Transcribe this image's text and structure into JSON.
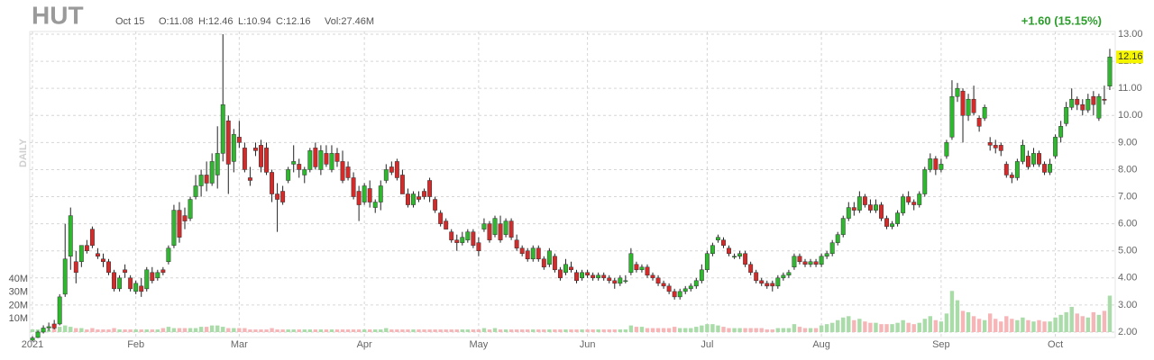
{
  "chart_data": {
    "type": "candlestick",
    "title": "HUT",
    "header": [
      "Oct 15",
      "O:11.08",
      "H:12.46",
      "L:10.94",
      "C:12.16",
      "Vol:27.46M"
    ],
    "change": "+1.60 (15.15%)",
    "period": "DAILY",
    "last_label": "12.16",
    "up_color": "#2db82d",
    "down_color": "#d42a2a",
    "volume_up_color": "#a9dca9",
    "volume_down_color": "#f6b6b8",
    "grid": true,
    "xlim": [
      -0.5,
      199
    ],
    "ylim": [
      1.8,
      13.1
    ],
    "vlim": [
      0,
      40
    ],
    "xticks": [
      {
        "value": 0,
        "label": "2021"
      },
      {
        "value": 19,
        "label": "Feb"
      },
      {
        "value": 38,
        "label": "Mar"
      },
      {
        "value": 61,
        "label": "Apr"
      },
      {
        "value": 82,
        "label": "May"
      },
      {
        "value": 102,
        "label": "Jun"
      },
      {
        "value": 124,
        "label": "Jul"
      },
      {
        "value": 145,
        "label": "Aug"
      },
      {
        "value": 167,
        "label": "Sep"
      },
      {
        "value": 188,
        "label": "Oct"
      }
    ],
    "yticks": [
      {
        "value": 2,
        "label": "2.00"
      },
      {
        "value": 3,
        "label": "3.00"
      },
      {
        "value": 4,
        "label": "4.00"
      },
      {
        "value": 5,
        "label": "5.00"
      },
      {
        "value": 6,
        "label": "6.00"
      },
      {
        "value": 7,
        "label": "7.00"
      },
      {
        "value": 8,
        "label": "8.00"
      },
      {
        "value": 9,
        "label": "9.00"
      },
      {
        "value": 10,
        "label": "10.00"
      },
      {
        "value": 11,
        "label": "11.00"
      },
      {
        "value": 12,
        "label": "12.00"
      },
      {
        "value": 13,
        "label": "13.00"
      }
    ],
    "vticks": [
      {
        "value": 10,
        "label": "10M"
      },
      {
        "value": 20,
        "label": "20M"
      },
      {
        "value": 30,
        "label": "30M"
      },
      {
        "value": 40,
        "label": "40M"
      }
    ],
    "ohlc": [
      [
        1.7,
        1.85,
        1.65,
        1.78
      ],
      [
        1.8,
        2.05,
        1.78,
        2.0
      ],
      [
        2.0,
        2.25,
        1.95,
        2.15
      ],
      [
        2.15,
        2.35,
        2.05,
        2.2
      ],
      [
        2.3,
        2.45,
        2.1,
        2.15
      ],
      [
        2.3,
        3.4,
        2.25,
        3.3
      ],
      [
        3.4,
        6.0,
        3.3,
        4.7
      ],
      [
        4.8,
        6.6,
        4.3,
        6.3
      ],
      [
        4.6,
        5.0,
        3.8,
        4.2
      ],
      [
        4.6,
        5.2,
        4.4,
        5.2
      ],
      [
        5.2,
        5.4,
        4.9,
        5.0
      ],
      [
        5.8,
        5.9,
        5.1,
        5.2
      ],
      [
        4.9,
        5.1,
        4.7,
        4.8
      ],
      [
        4.7,
        4.9,
        4.4,
        4.6
      ],
      [
        4.6,
        4.7,
        4.1,
        4.2
      ],
      [
        4.2,
        4.3,
        3.5,
        3.6
      ],
      [
        3.6,
        4.1,
        3.5,
        4.0
      ],
      [
        4.3,
        4.5,
        4.0,
        4.2
      ],
      [
        4.0,
        4.1,
        3.5,
        3.6
      ],
      [
        3.5,
        3.9,
        3.4,
        3.8
      ],
      [
        3.7,
        4.0,
        3.3,
        3.5
      ],
      [
        3.6,
        4.4,
        3.5,
        4.3
      ],
      [
        4.2,
        4.4,
        3.8,
        3.9
      ],
      [
        4.0,
        4.3,
        3.9,
        4.2
      ],
      [
        4.3,
        4.4,
        4.1,
        4.2
      ],
      [
        4.6,
        5.2,
        4.5,
        5.1
      ],
      [
        5.2,
        6.7,
        5.1,
        6.5
      ],
      [
        6.5,
        6.8,
        5.3,
        5.5
      ],
      [
        6.3,
        6.6,
        5.8,
        6.1
      ],
      [
        6.2,
        7.0,
        6.1,
        6.9
      ],
      [
        7.0,
        7.8,
        6.9,
        7.4
      ],
      [
        7.4,
        8.0,
        7.0,
        7.8
      ],
      [
        7.8,
        8.3,
        7.2,
        7.5
      ],
      [
        7.5,
        8.6,
        7.4,
        8.3
      ],
      [
        7.8,
        9.6,
        7.3,
        8.6
      ],
      [
        8.6,
        13.0,
        8.3,
        10.4
      ],
      [
        9.8,
        10.0,
        7.1,
        8.2
      ],
      [
        8.3,
        9.5,
        7.9,
        9.3
      ],
      [
        9.2,
        9.8,
        8.8,
        9.0
      ],
      [
        8.8,
        9.0,
        7.9,
        8.0
      ],
      [
        7.7,
        8.1,
        7.4,
        7.6
      ],
      [
        8.8,
        9.0,
        8.5,
        8.7
      ],
      [
        8.9,
        9.1,
        7.9,
        8.1
      ],
      [
        8.8,
        9.0,
        7.8,
        7.9
      ],
      [
        7.9,
        8.0,
        6.8,
        7.1
      ],
      [
        7.1,
        7.5,
        5.7,
        6.9
      ],
      [
        7.2,
        7.4,
        6.7,
        6.8
      ],
      [
        7.6,
        8.1,
        7.5,
        8.0
      ],
      [
        8.2,
        8.9,
        7.9,
        8.3
      ],
      [
        8.2,
        8.4,
        7.7,
        8.0
      ],
      [
        7.8,
        8.1,
        7.5,
        8.0
      ],
      [
        8.0,
        8.8,
        7.9,
        8.7
      ],
      [
        8.8,
        9.0,
        8.0,
        8.1
      ],
      [
        8.0,
        8.9,
        7.8,
        8.7
      ],
      [
        8.6,
        8.9,
        8.1,
        8.2
      ],
      [
        8.0,
        8.9,
        7.9,
        8.6
      ],
      [
        8.6,
        8.8,
        8.1,
        8.3
      ],
      [
        8.3,
        8.7,
        7.5,
        7.6
      ],
      [
        8.1,
        8.3,
        7.6,
        7.7
      ],
      [
        7.7,
        7.9,
        6.9,
        7.0
      ],
      [
        7.2,
        7.4,
        6.1,
        6.7
      ],
      [
        6.8,
        7.5,
        6.7,
        7.4
      ],
      [
        7.3,
        7.6,
        6.6,
        6.8
      ],
      [
        6.6,
        6.9,
        6.4,
        6.8
      ],
      [
        6.8,
        7.6,
        6.5,
        7.4
      ],
      [
        7.6,
        8.2,
        7.5,
        8.0
      ],
      [
        8.1,
        8.3,
        7.8,
        7.9
      ],
      [
        8.3,
        8.4,
        7.6,
        7.7
      ],
      [
        7.8,
        8.0,
        7.1,
        7.1
      ],
      [
        7.1,
        7.3,
        6.6,
        6.7
      ],
      [
        6.7,
        7.2,
        6.6,
        7.1
      ],
      [
        7.0,
        7.2,
        6.8,
        6.9
      ],
      [
        7.2,
        7.3,
        6.9,
        7.0
      ],
      [
        7.6,
        7.7,
        6.8,
        7.0
      ],
      [
        6.9,
        7.0,
        6.4,
        6.5
      ],
      [
        6.4,
        6.5,
        5.9,
        6.0
      ],
      [
        6.1,
        6.2,
        5.8,
        5.8
      ],
      [
        5.7,
        5.8,
        5.3,
        5.4
      ],
      [
        5.4,
        5.6,
        5.0,
        5.3
      ],
      [
        5.3,
        5.7,
        5.2,
        5.5
      ],
      [
        5.4,
        5.8,
        5.3,
        5.7
      ],
      [
        5.7,
        5.8,
        5.1,
        5.2
      ],
      [
        5.3,
        5.5,
        4.8,
        5.0
      ],
      [
        5.8,
        6.2,
        5.7,
        6.0
      ],
      [
        6.0,
        6.1,
        5.3,
        5.4
      ],
      [
        5.6,
        6.3,
        5.5,
        6.2
      ],
      [
        6.0,
        6.3,
        5.3,
        5.4
      ],
      [
        5.6,
        6.2,
        5.5,
        6.1
      ],
      [
        6.1,
        6.2,
        5.4,
        5.5
      ],
      [
        5.4,
        5.6,
        5.0,
        5.1
      ],
      [
        5.1,
        5.2,
        4.8,
        4.9
      ],
      [
        5.0,
        5.1,
        4.6,
        4.7
      ],
      [
        4.7,
        5.2,
        4.6,
        5.1
      ],
      [
        5.1,
        5.2,
        4.6,
        4.7
      ],
      [
        4.7,
        4.8,
        4.3,
        4.4
      ],
      [
        4.5,
        5.1,
        4.4,
        5.0
      ],
      [
        4.8,
        4.9,
        4.2,
        4.3
      ],
      [
        4.3,
        4.4,
        3.9,
        4.0
      ],
      [
        4.2,
        4.7,
        4.1,
        4.5
      ],
      [
        4.4,
        4.6,
        4.2,
        4.3
      ],
      [
        4.2,
        4.3,
        3.8,
        3.9
      ],
      [
        4.0,
        4.3,
        3.9,
        4.2
      ],
      [
        4.2,
        4.3,
        4.0,
        4.1
      ],
      [
        4.1,
        4.2,
        3.9,
        4.0
      ],
      [
        4.0,
        4.2,
        3.9,
        4.1
      ],
      [
        4.1,
        4.2,
        3.9,
        4.0
      ],
      [
        4.0,
        4.1,
        3.8,
        3.9
      ],
      [
        3.9,
        4.0,
        3.6,
        3.8
      ],
      [
        3.8,
        4.1,
        3.7,
        4.0
      ],
      [
        3.9,
        4.1,
        3.8,
        3.9
      ],
      [
        4.2,
        5.1,
        4.1,
        4.9
      ],
      [
        4.5,
        4.6,
        4.2,
        4.3
      ],
      [
        4.3,
        4.5,
        4.2,
        4.4
      ],
      [
        4.4,
        4.5,
        4.0,
        4.1
      ],
      [
        4.1,
        4.2,
        3.9,
        4.0
      ],
      [
        4.0,
        4.1,
        3.7,
        3.8
      ],
      [
        3.8,
        3.9,
        3.6,
        3.7
      ],
      [
        3.7,
        3.8,
        3.4,
        3.5
      ],
      [
        3.5,
        3.6,
        3.2,
        3.3
      ],
      [
        3.3,
        3.6,
        3.2,
        3.5
      ],
      [
        3.5,
        3.7,
        3.4,
        3.6
      ],
      [
        3.6,
        3.8,
        3.5,
        3.7
      ],
      [
        3.7,
        4.0,
        3.6,
        3.9
      ],
      [
        3.9,
        4.5,
        3.8,
        4.3
      ],
      [
        4.3,
        5.0,
        4.2,
        4.9
      ],
      [
        4.9,
        5.3,
        4.8,
        5.2
      ],
      [
        5.4,
        5.6,
        5.3,
        5.5
      ],
      [
        5.4,
        5.5,
        5.1,
        5.2
      ],
      [
        5.1,
        5.2,
        4.8,
        4.9
      ],
      [
        4.8,
        4.9,
        4.7,
        4.8
      ],
      [
        4.8,
        5.0,
        4.7,
        4.9
      ],
      [
        4.9,
        5.0,
        4.4,
        4.5
      ],
      [
        4.5,
        4.6,
        4.1,
        4.2
      ],
      [
        4.2,
        4.3,
        3.8,
        3.9
      ],
      [
        3.9,
        4.0,
        3.7,
        3.8
      ],
      [
        3.8,
        3.9,
        3.6,
        3.7
      ],
      [
        3.8,
        3.9,
        3.5,
        3.7
      ],
      [
        3.7,
        4.1,
        3.6,
        4.0
      ],
      [
        4.0,
        4.2,
        3.9,
        4.1
      ],
      [
        4.1,
        4.3,
        4.0,
        4.2
      ],
      [
        4.4,
        4.9,
        4.3,
        4.8
      ],
      [
        4.8,
        4.9,
        4.5,
        4.6
      ],
      [
        4.6,
        4.7,
        4.4,
        4.5
      ],
      [
        4.5,
        4.7,
        4.4,
        4.6
      ],
      [
        4.6,
        4.7,
        4.4,
        4.5
      ],
      [
        4.5,
        4.9,
        4.4,
        4.8
      ],
      [
        4.8,
        5.0,
        4.7,
        4.9
      ],
      [
        4.9,
        5.4,
        4.8,
        5.3
      ],
      [
        5.3,
        5.7,
        5.2,
        5.6
      ],
      [
        5.6,
        6.3,
        5.5,
        6.2
      ],
      [
        6.2,
        6.8,
        6.1,
        6.6
      ],
      [
        6.6,
        6.8,
        6.3,
        6.5
      ],
      [
        6.5,
        7.2,
        6.4,
        7.0
      ],
      [
        7.0,
        7.1,
        6.6,
        6.7
      ],
      [
        6.7,
        6.9,
        6.4,
        6.5
      ],
      [
        6.5,
        6.9,
        6.4,
        6.7
      ],
      [
        6.7,
        6.8,
        6.1,
        6.2
      ],
      [
        6.2,
        6.3,
        5.8,
        5.9
      ],
      [
        5.9,
        6.1,
        5.8,
        6.0
      ],
      [
        6.0,
        6.5,
        5.9,
        6.4
      ],
      [
        6.4,
        7.1,
        6.3,
        7.0
      ],
      [
        7.0,
        7.2,
        6.7,
        6.8
      ],
      [
        6.8,
        6.9,
        6.5,
        6.7
      ],
      [
        6.7,
        7.2,
        6.6,
        7.1
      ],
      [
        7.1,
        8.1,
        7.0,
        8.0
      ],
      [
        8.0,
        8.6,
        7.9,
        8.4
      ],
      [
        8.4,
        8.5,
        7.8,
        8.0
      ],
      [
        8.0,
        8.4,
        7.9,
        8.2
      ],
      [
        8.5,
        9.1,
        8.4,
        9.0
      ],
      [
        9.2,
        11.3,
        9.1,
        10.7
      ],
      [
        10.7,
        11.2,
        10.5,
        11.0
      ],
      [
        10.9,
        11.0,
        9.0,
        10.0
      ],
      [
        10.0,
        10.8,
        9.8,
        10.6
      ],
      [
        10.6,
        11.1,
        10.0,
        10.1
      ],
      [
        9.9,
        10.0,
        9.4,
        9.6
      ],
      [
        9.9,
        10.4,
        9.8,
        10.3
      ],
      [
        9.0,
        9.2,
        8.7,
        8.9
      ],
      [
        8.9,
        9.1,
        8.6,
        8.8
      ],
      [
        8.9,
        9.0,
        8.5,
        8.7
      ],
      [
        8.2,
        8.3,
        7.7,
        7.8
      ],
      [
        7.8,
        7.9,
        7.5,
        7.7
      ],
      [
        7.7,
        8.4,
        7.6,
        8.3
      ],
      [
        8.3,
        9.1,
        8.2,
        8.9
      ],
      [
        8.5,
        8.7,
        8.0,
        8.1
      ],
      [
        8.2,
        8.8,
        8.1,
        8.6
      ],
      [
        8.6,
        8.7,
        8.1,
        8.2
      ],
      [
        8.2,
        8.3,
        7.8,
        7.9
      ],
      [
        7.9,
        8.4,
        7.8,
        8.2
      ],
      [
        8.5,
        9.3,
        8.4,
        9.2
      ],
      [
        9.2,
        9.8,
        9.0,
        9.6
      ],
      [
        9.7,
        10.5,
        9.6,
        10.3
      ],
      [
        10.3,
        11.0,
        10.2,
        10.6
      ],
      [
        10.6,
        10.7,
        10.2,
        10.4
      ],
      [
        10.4,
        10.6,
        10.0,
        10.2
      ],
      [
        10.2,
        10.8,
        10.1,
        10.6
      ],
      [
        10.7,
        10.9,
        10.0,
        10.4
      ],
      [
        9.9,
        10.8,
        9.8,
        10.7
      ],
      [
        10.6,
        11.1,
        10.4,
        10.56
      ],
      [
        11.08,
        12.46,
        10.94,
        12.16
      ]
    ],
    "volume": [
      2,
      2,
      2,
      2,
      3,
      4,
      5,
      4,
      3,
      3,
      2,
      3,
      2,
      2,
      2,
      3,
      2,
      2,
      2,
      2,
      2,
      2,
      2,
      2,
      3,
      4,
      3,
      3,
      3,
      3,
      3,
      4,
      4,
      5,
      5,
      4,
      3,
      3,
      3,
      3,
      2,
      2,
      2,
      2,
      3,
      2,
      2,
      2,
      2,
      2,
      2,
      2,
      2,
      2,
      2,
      2,
      2,
      2,
      2,
      2,
      2,
      2,
      2,
      2,
      2,
      3,
      2,
      2,
      2,
      2,
      2,
      2,
      2,
      2,
      2,
      2,
      2,
      2,
      2,
      2,
      2,
      2,
      2,
      3,
      2,
      3,
      2,
      2,
      2,
      2,
      2,
      2,
      2,
      2,
      2,
      2,
      2,
      2,
      2,
      2,
      2,
      2,
      2,
      2,
      2,
      2,
      2,
      2,
      2,
      2,
      5,
      4,
      4,
      3,
      3,
      3,
      3,
      3,
      4,
      3,
      3,
      3,
      4,
      5,
      6,
      6,
      5,
      4,
      3,
      3,
      3,
      3,
      3,
      3,
      3,
      2,
      2,
      3,
      3,
      3,
      6,
      4,
      3,
      3,
      3,
      5,
      6,
      7,
      9,
      11,
      12,
      9,
      10,
      8,
      7,
      7,
      6,
      6,
      6,
      7,
      9,
      7,
      6,
      7,
      10,
      12,
      9,
      8,
      14,
      31,
      24,
      16,
      15,
      12,
      10,
      9,
      14,
      10,
      8,
      12,
      10,
      9,
      11,
      9,
      8,
      9,
      8,
      8,
      11,
      13,
      15,
      19,
      14,
      12,
      11,
      15,
      13,
      16,
      27.46
    ]
  }
}
